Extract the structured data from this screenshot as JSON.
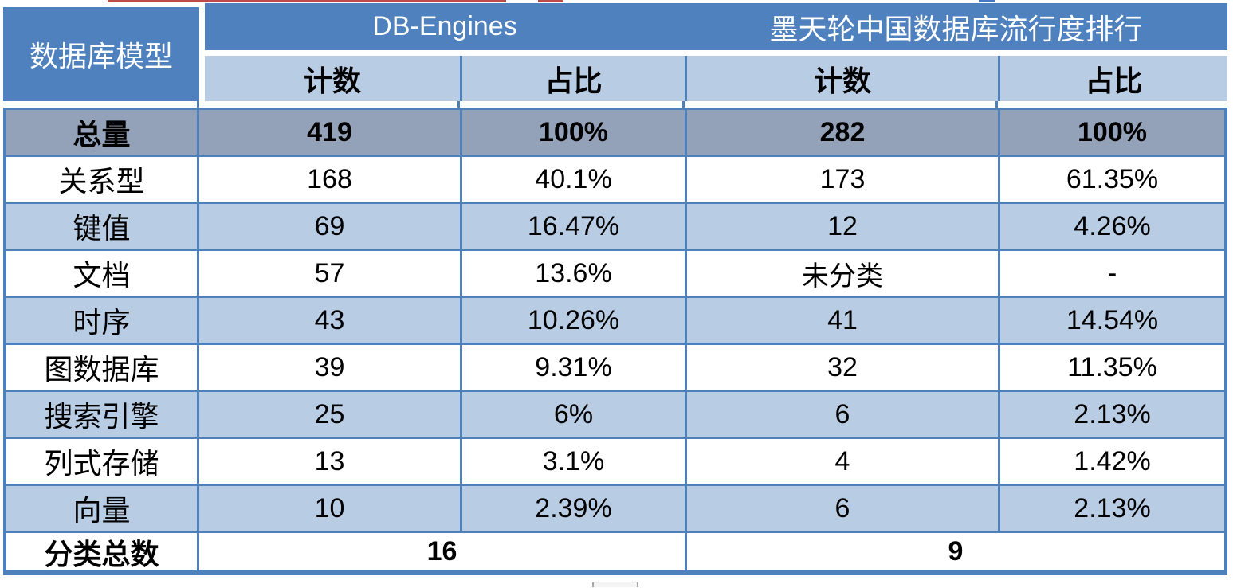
{
  "chart_data": {
    "type": "table",
    "corner_header": "数据库模型",
    "group_headers": [
      "DB-Engines",
      "墨天轮中国数据库流行度排行"
    ],
    "sub_headers": [
      "计数",
      "占比",
      "计数",
      "占比"
    ],
    "rows": [
      [
        "总量",
        "419",
        "100%",
        "282",
        "100%"
      ],
      [
        "关系型",
        "168",
        "40.1%",
        "173",
        "61.35%"
      ],
      [
        "键值",
        "69",
        "16.47%",
        "12",
        "4.26%"
      ],
      [
        "文档",
        "57",
        "13.6%",
        "未分类",
        "-"
      ],
      [
        "时序",
        "43",
        "10.26%",
        "41",
        "14.54%"
      ],
      [
        "图数据库",
        "39",
        "9.31%",
        "32",
        "11.35%"
      ],
      [
        "搜索引擎",
        "25",
        "6%",
        "6",
        "2.13%"
      ],
      [
        "列式存储",
        "13",
        "3.1%",
        "4",
        "1.42%"
      ],
      [
        "向量",
        "10",
        "2.39%",
        "6",
        "2.13%"
      ]
    ],
    "footer_row": [
      "分类总数",
      "16",
      "9"
    ],
    "emphasized_rows": [
      "总量",
      "分类总数"
    ],
    "layout_hints": {
      "grid": "on",
      "alternating_row_fill": true,
      "footer_values_span_two_columns_each": true
    }
  },
  "colors": {
    "header_fill": "#4E81BD",
    "header_text": "#FFFFFF",
    "subheader_fill": "#B8CCE4",
    "total_row_fill": "#93A2B8",
    "alt_row_fill": "#B8CCE4",
    "row_fill": "#FFFFFF",
    "gridline_blue": "#4E80BC",
    "body_text": "#000000",
    "artifact_red": "#BE4B48",
    "artifact_blue": "#4777C0",
    "artifact_gray": "#A6A6A6"
  }
}
